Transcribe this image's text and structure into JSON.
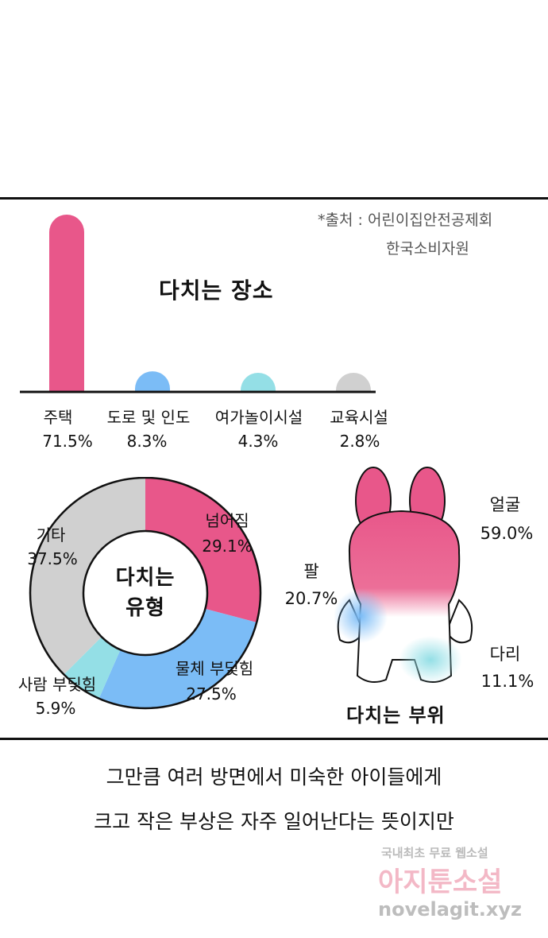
{
  "colors": {
    "pink": "#e8578a",
    "blue": "#7bbcf6",
    "teal": "#94dfe6",
    "gray": "#d0d0d0"
  },
  "source": {
    "line1": "*출처 : 어린이집안전공제회",
    "line2": "한국소비자원"
  },
  "chart_data": [
    {
      "type": "bar",
      "title": "다치는 장소",
      "categories": [
        "주택",
        "도로 및 인도",
        "여가놀이시설",
        "교육시설"
      ],
      "values": [
        71.5,
        8.3,
        4.3,
        2.8
      ],
      "value_labels": [
        "71.5%",
        "8.3%",
        "4.3%",
        "2.8%"
      ],
      "colors": [
        "#e8578a",
        "#7bbcf6",
        "#94dfe6",
        "#d0d0d0"
      ]
    },
    {
      "type": "pie",
      "title_lines": [
        "다치는",
        "유형"
      ],
      "categories": [
        "넘어짐",
        "물체 부딪힘",
        "사람 부딪힘",
        "기타"
      ],
      "values": [
        29.1,
        27.5,
        5.9,
        37.5
      ],
      "value_labels": [
        "29.1%",
        "27.5%",
        "5.9%",
        "37.5%"
      ],
      "colors": [
        "#e8578a",
        "#7bbcf6",
        "#94dfe6",
        "#d0d0d0"
      ]
    },
    {
      "type": "other",
      "title": "다치는 부위",
      "categories": [
        "얼굴",
        "팔",
        "다리"
      ],
      "values": [
        59.0,
        20.7,
        11.1
      ],
      "value_labels": [
        "59.0%",
        "20.7%",
        "11.1%"
      ]
    }
  ],
  "caption": {
    "line1": "그만큼 여러 방면에서 미숙한 아이들에게",
    "line2": "크고 작은 부상은 자주 일어난다는 뜻이지만"
  },
  "watermark": {
    "line1": "국내최초 무료 웹소설",
    "line2": "아지툰소설",
    "line3": "novelagit.xyz"
  }
}
